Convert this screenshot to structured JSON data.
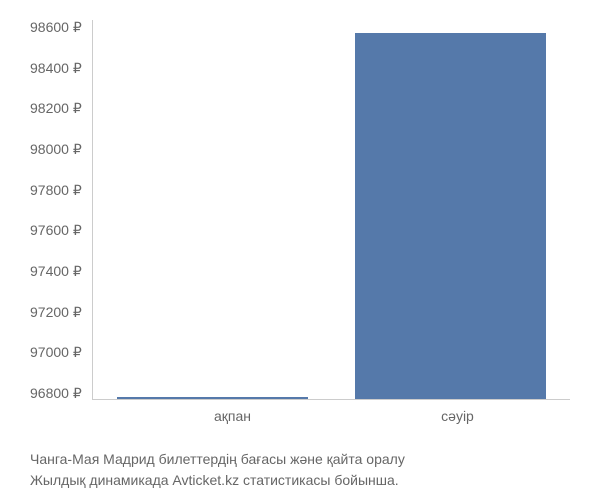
{
  "chart": {
    "type": "bar",
    "background_color": "#ffffff",
    "axis_color": "#cccccc",
    "y_ticks": [
      "98600 ₽",
      "98400 ₽",
      "98200 ₽",
      "98000 ₽",
      "97800 ₽",
      "97600 ₽",
      "97400 ₽",
      "97200 ₽",
      "97000 ₽",
      "96800 ₽"
    ],
    "y_min": 96800,
    "y_max": 98600,
    "y_label_color": "#666666",
    "y_label_fontsize": 14,
    "x_labels": [
      "ақпан",
      "сәуір"
    ],
    "x_label_color": "#666666",
    "x_label_fontsize": 14,
    "bars": [
      {
        "label": "ақпан",
        "value": 96810,
        "height_pct": 0.6,
        "color": "#5579aa"
      },
      {
        "label": "сәуір",
        "value": 98540,
        "height_pct": 96.7,
        "color": "#5579aa"
      }
    ],
    "bar_width_pct": 80
  },
  "caption": {
    "line1": "Чанга-Мая Мадрид билеттердің бағасы және қайта оралу",
    "line2": "Жылдық динамикада Avticket.kz статистикасы бойынша.",
    "color": "#666666",
    "fontsize": 14
  }
}
